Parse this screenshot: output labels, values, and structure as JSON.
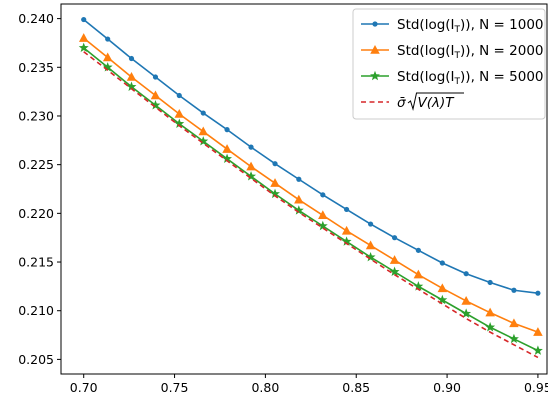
{
  "chart_data": {
    "type": "line",
    "title": "",
    "xlabel": "",
    "ylabel": "",
    "xlim": [
      0.6875,
      0.955
    ],
    "ylim": [
      0.2035,
      0.2415
    ],
    "xticks": [
      0.7,
      0.75,
      0.8,
      0.85,
      0.9,
      0.95
    ],
    "xtick_labels": [
      "0.70",
      "0.75",
      "0.80",
      "0.85",
      "0.90",
      "0.95"
    ],
    "yticks": [
      0.205,
      0.21,
      0.215,
      0.22,
      0.225,
      0.23,
      0.235,
      0.24
    ],
    "ytick_labels": [
      "0.205",
      "0.210",
      "0.215",
      "0.220",
      "0.225",
      "0.230",
      "0.235",
      "0.240"
    ],
    "grid": false,
    "legend_position": "top-right",
    "x": [
      0.7,
      0.7132,
      0.7263,
      0.7395,
      0.7526,
      0.7658,
      0.7789,
      0.7921,
      0.8053,
      0.8184,
      0.8316,
      0.8447,
      0.8579,
      0.8711,
      0.8842,
      0.8974,
      0.9105,
      0.9237,
      0.9368,
      0.95
    ],
    "series": [
      {
        "name": "Std(log(I_T)), N = 1000",
        "legend_main": "Std(log(I",
        "legend_sub": "T",
        "legend_tail": ")), N = 1000",
        "color": "#1f77b4",
        "marker": "circle",
        "line": "solid",
        "values": [
          0.2399,
          0.2379,
          0.2359,
          0.234,
          0.2321,
          0.2303,
          0.2286,
          0.2268,
          0.2251,
          0.2235,
          0.2219,
          0.2204,
          0.2189,
          0.2175,
          0.2162,
          0.2149,
          0.2138,
          0.2129,
          0.2121,
          0.2118
        ]
      },
      {
        "name": "Std(log(I_T)), N = 2000",
        "legend_main": "Std(log(I",
        "legend_sub": "T",
        "legend_tail": ")), N = 2000",
        "color": "#ff7f0e",
        "marker": "triangle",
        "line": "solid",
        "values": [
          0.238,
          0.236,
          0.234,
          0.2321,
          0.2302,
          0.2284,
          0.2266,
          0.2248,
          0.2231,
          0.2214,
          0.2198,
          0.2182,
          0.2167,
          0.2152,
          0.2137,
          0.2123,
          0.211,
          0.2098,
          0.2087,
          0.2078
        ]
      },
      {
        "name": "Std(log(I_T)), N = 5000",
        "legend_main": "Std(log(I",
        "legend_sub": "T",
        "legend_tail": ")), N = 5000",
        "color": "#2ca02c",
        "marker": "star",
        "line": "solid",
        "values": [
          0.237,
          0.235,
          0.233,
          0.2311,
          0.2292,
          0.2274,
          0.2256,
          0.2238,
          0.222,
          0.2203,
          0.2187,
          0.2171,
          0.2155,
          0.214,
          0.2125,
          0.2111,
          0.2097,
          0.2083,
          0.2071,
          0.2059
        ]
      },
      {
        "name": "σ̄√(V(λ)T)",
        "legend_formula": "σ̄",
        "legend_radicand": "V(λ)T",
        "color": "#d62728",
        "marker": "none",
        "line": "dashed",
        "values": [
          0.2366,
          0.2347,
          0.2328,
          0.2309,
          0.229,
          0.2272,
          0.2254,
          0.2236,
          0.2218,
          0.2201,
          0.2185,
          0.2169,
          0.2153,
          0.2137,
          0.2122,
          0.2107,
          0.2092,
          0.2078,
          0.2065,
          0.2052
        ]
      }
    ]
  }
}
